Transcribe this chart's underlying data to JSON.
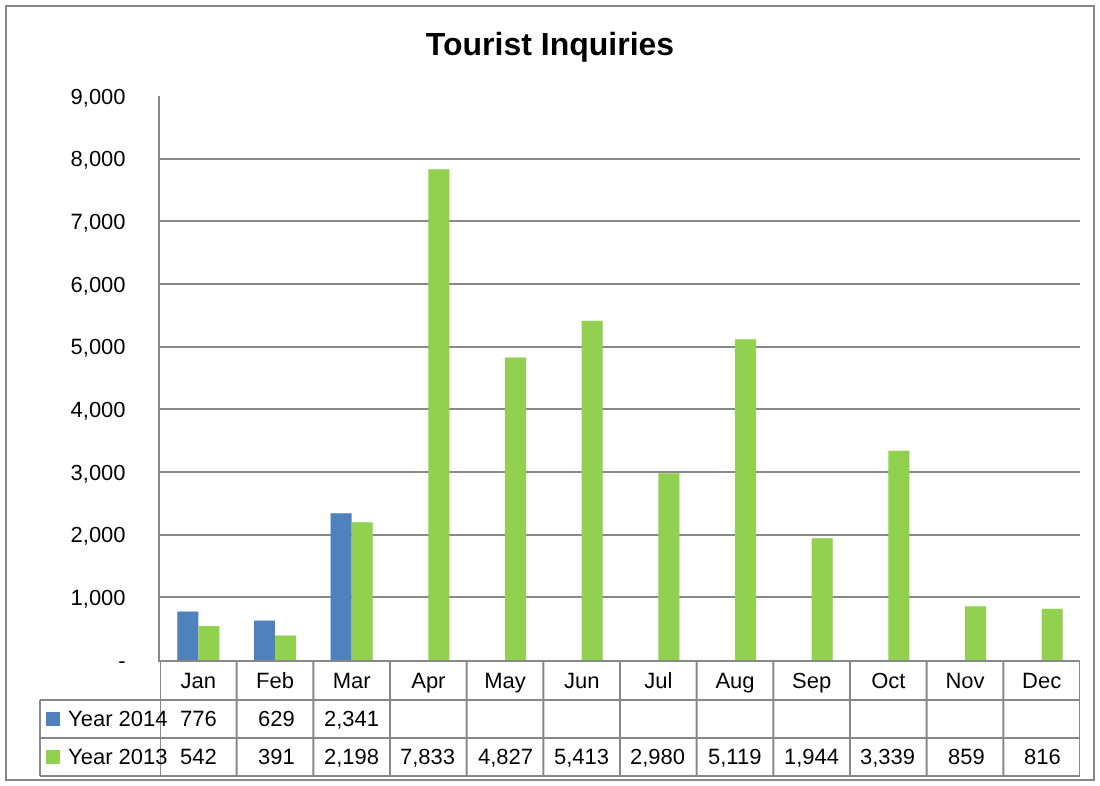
{
  "chart_data": {
    "type": "bar",
    "title": "Tourist Inquiries",
    "categories": [
      "Jan",
      "Feb",
      "Mar",
      "Apr",
      "May",
      "Jun",
      "Jul",
      "Aug",
      "Sep",
      "Oct",
      "Nov",
      "Dec"
    ],
    "series": [
      {
        "name": "Year 2014",
        "color": "#4f81bd",
        "values": [
          776,
          629,
          2341,
          null,
          null,
          null,
          null,
          null,
          null,
          null,
          null,
          null
        ],
        "value_labels": [
          "776",
          "629",
          "2,341",
          null,
          null,
          null,
          null,
          null,
          null,
          null,
          null,
          null
        ]
      },
      {
        "name": "Year 2013",
        "color": "#92d050",
        "values": [
          542,
          391,
          2198,
          7833,
          4827,
          5413,
          2980,
          5119,
          1944,
          3339,
          859,
          816
        ],
        "value_labels": [
          "542",
          "391",
          "2,198",
          "7,833",
          "4,827",
          "5,413",
          "2,980",
          "5,119",
          "1,944",
          "3,339",
          "859",
          "816"
        ]
      }
    ],
    "ylim": [
      0,
      9000
    ],
    "yticks": [
      {
        "value": 0,
        "label": "-"
      },
      {
        "value": 1000,
        "label": "1,000"
      },
      {
        "value": 2000,
        "label": "2,000"
      },
      {
        "value": 3000,
        "label": "3,000"
      },
      {
        "value": 4000,
        "label": "4,000"
      },
      {
        "value": 5000,
        "label": "5,000"
      },
      {
        "value": 6000,
        "label": "6,000"
      },
      {
        "value": 7000,
        "label": "7,000"
      },
      {
        "value": 8000,
        "label": "8,000"
      },
      {
        "value": 9000,
        "label": "9,000"
      }
    ],
    "grid": "y",
    "legend": "bottom"
  }
}
